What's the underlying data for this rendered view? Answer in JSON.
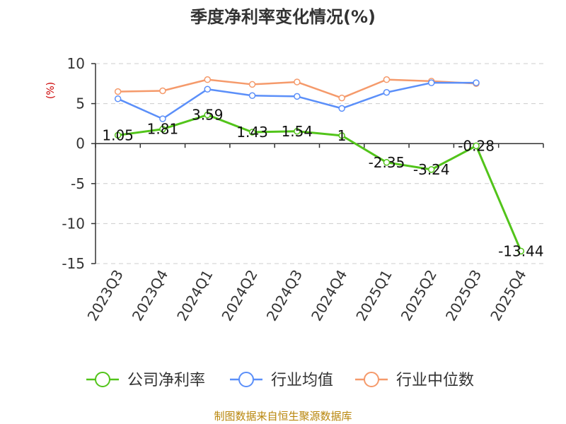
{
  "chart_data": {
    "type": "line",
    "title": "季度净利率变化情况(%)",
    "ylabel": "(%)",
    "categories": [
      "2023Q3",
      "2023Q4",
      "2024Q1",
      "2024Q2",
      "2024Q3",
      "2024Q4",
      "2025Q1",
      "2025Q2",
      "2025Q3",
      "2025Q4"
    ],
    "ylim": [
      -15,
      10
    ],
    "yticks": [
      10,
      5,
      0,
      -5,
      -10,
      -15
    ],
    "grid": true,
    "legend_position": "bottom",
    "series": [
      {
        "name": "公司净利率",
        "color": "#52c41a",
        "values": [
          1.05,
          1.81,
          3.59,
          1.43,
          1.54,
          1,
          -2.35,
          -3.24,
          -0.28,
          -13.44
        ],
        "labels": [
          "1.05",
          "1.81",
          "3.59",
          "1.43",
          "1.54",
          "1",
          "-2.35",
          "-3.24",
          "-0.28",
          "-13.44"
        ]
      },
      {
        "name": "行业均值",
        "color": "#5b8ff9",
        "values": [
          5.6,
          3.1,
          6.8,
          6.0,
          5.9,
          4.4,
          6.4,
          7.6,
          7.6,
          null
        ]
      },
      {
        "name": "行业中位数",
        "color": "#f59a6b",
        "values": [
          6.5,
          6.6,
          8.0,
          7.4,
          7.7,
          5.7,
          8.0,
          7.8,
          7.5,
          null
        ]
      }
    ]
  },
  "source_text": "制图数据来自恒生聚源数据库",
  "colors": {
    "axis": "#333333",
    "grid": "#cccccc",
    "ylabel": "#cc0000",
    "source": "#b8860b"
  }
}
